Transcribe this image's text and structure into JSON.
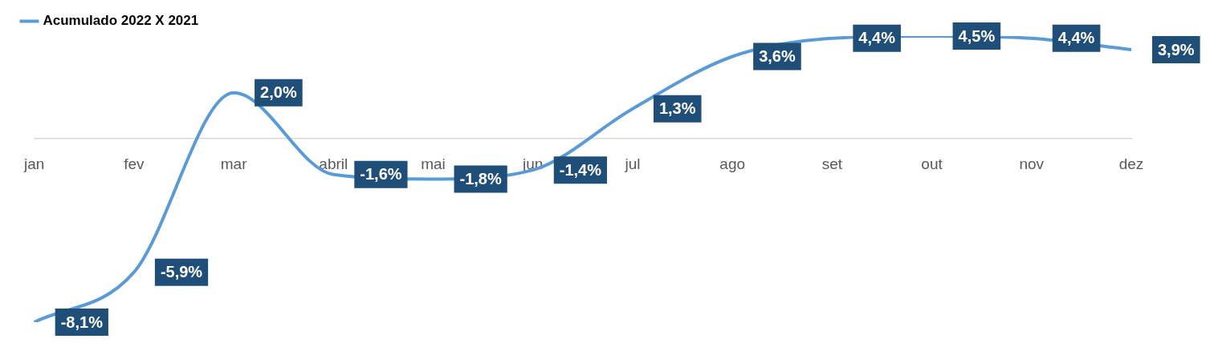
{
  "chart_data": {
    "type": "line",
    "categories": [
      "jan",
      "fev",
      "mar",
      "abril",
      "mai",
      "jun",
      "jul",
      "ago",
      "set",
      "out",
      "nov",
      "dez"
    ],
    "series": [
      {
        "name": "Acumulado 2022 X 2021",
        "color": "#5b9bd5",
        "values": [
          -8.1,
          -5.9,
          2.0,
          -1.6,
          -1.8,
          -1.4,
          1.3,
          3.6,
          4.4,
          4.5,
          4.4,
          3.9
        ],
        "value_labels": [
          "-8,1%",
          "-5,9%",
          "2,0%",
          "-1,6%",
          "-1,8%",
          "-1,4%",
          "1,3%",
          "3,6%",
          "4,4%",
          "4,5%",
          "4,4%",
          "3,9%"
        ]
      }
    ],
    "legend": "top left",
    "grid": false,
    "marker": "none",
    "line_style": "solid"
  }
}
